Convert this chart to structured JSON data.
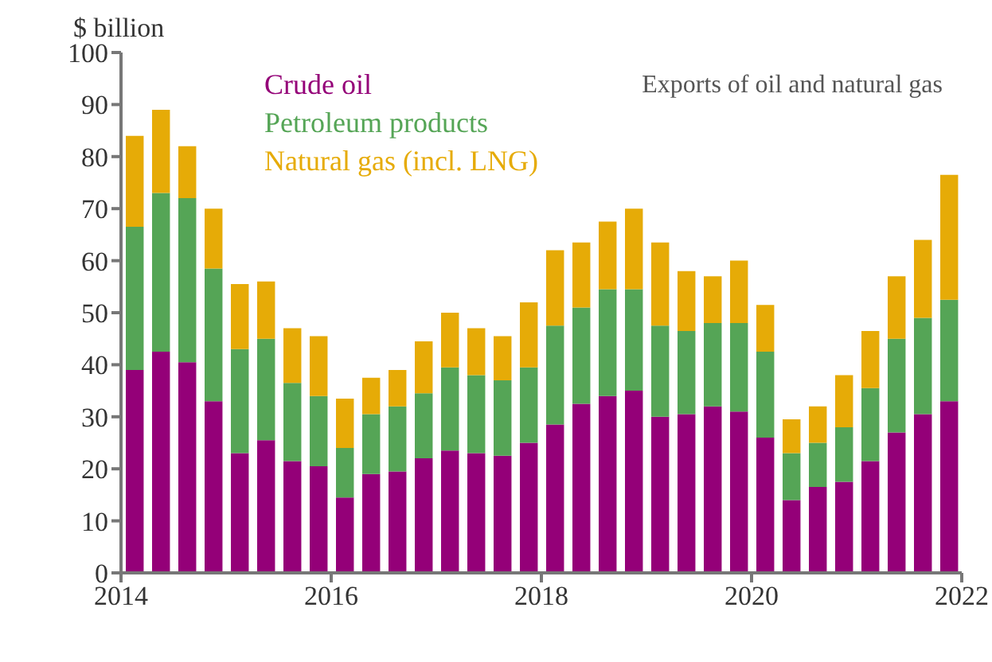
{
  "chart_data": {
    "type": "bar",
    "title": "Exports of oil and natural gas",
    "ylabel": "$ billion",
    "x": [
      2014.125,
      2014.375,
      2014.625,
      2014.875,
      2015.125,
      2015.375,
      2015.625,
      2015.875,
      2016.125,
      2016.375,
      2016.625,
      2016.875,
      2017.125,
      2017.375,
      2017.625,
      2017.875,
      2018.125,
      2018.375,
      2018.625,
      2018.875,
      2019.125,
      2019.375,
      2019.625,
      2019.875,
      2020.125,
      2020.375,
      2020.625,
      2020.875,
      2021.125,
      2021.375,
      2021.625,
      2021.875
    ],
    "stacked": true,
    "series": [
      {
        "name": "Crude oil",
        "color": "#940078",
        "values": [
          39,
          42.5,
          40.5,
          33,
          23,
          25.5,
          21.5,
          20.5,
          14.5,
          19,
          19.5,
          22,
          23.5,
          23,
          22.5,
          25,
          28.5,
          32.5,
          34,
          35,
          30,
          30.5,
          32,
          31,
          26,
          14,
          16.5,
          17.5,
          21.5,
          27,
          30.5,
          33
        ]
      },
      {
        "name": "Petroleum products",
        "color": "#55a556",
        "values": [
          27.5,
          30.5,
          31.5,
          25.5,
          20,
          19.5,
          15,
          13.5,
          9.5,
          11.5,
          12.5,
          12.5,
          16,
          15,
          14.5,
          14.5,
          19,
          18.5,
          20.5,
          19.5,
          17.5,
          16,
          16,
          17,
          16.5,
          9,
          8.5,
          10.5,
          14,
          18,
          18.5,
          19.5
        ]
      },
      {
        "name": "Natural gas (incl. LNG)",
        "color": "#e6ab07",
        "values": [
          17.5,
          16,
          10,
          11.5,
          12.5,
          11,
          10.5,
          11.5,
          9.5,
          7,
          7,
          10,
          10.5,
          9,
          8.5,
          12.5,
          14.5,
          12.5,
          13,
          15.5,
          16,
          11.5,
          9,
          12,
          9,
          6.5,
          7,
          10,
          11,
          12,
          15,
          24
        ]
      }
    ],
    "xlim": [
      2014,
      2022
    ],
    "xticks": [
      2014,
      2016,
      2018,
      2020,
      2022
    ],
    "ylim": [
      0,
      100
    ],
    "yticks": [
      0,
      10,
      20,
      30,
      40,
      50,
      60,
      70,
      80,
      90,
      100
    ],
    "legend": "top left",
    "grid": false
  }
}
